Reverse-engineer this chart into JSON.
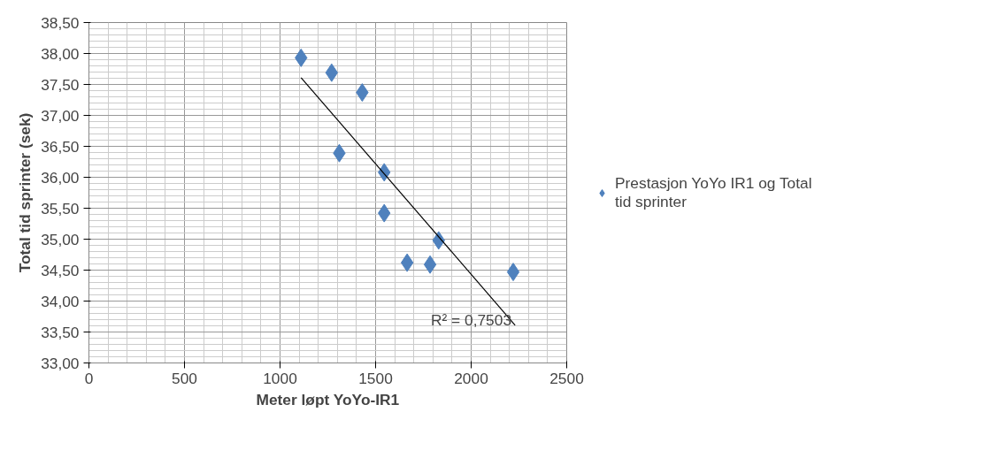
{
  "chart_data": {
    "type": "scatter",
    "xlabel": "Meter løpt YoYo-IR1",
    "ylabel": "Total tid sprinter (sek)",
    "xlim": [
      0,
      2500
    ],
    "xticks": [
      0,
      500,
      1000,
      1500,
      2000,
      2500
    ],
    "ylim": [
      33,
      38.5
    ],
    "yticks": [
      {
        "value": 33,
        "label": "33,00"
      },
      {
        "value": 33.5,
        "label": "33,50"
      },
      {
        "value": 34,
        "label": "34,00"
      },
      {
        "value": 34.5,
        "label": "34,50"
      },
      {
        "value": 35,
        "label": "35,00"
      },
      {
        "value": 35.5,
        "label": "35,50"
      },
      {
        "value": 36,
        "label": "36,00"
      },
      {
        "value": 36.5,
        "label": "36,50"
      },
      {
        "value": 37,
        "label": "37,00"
      },
      {
        "value": 37.5,
        "label": "37,50"
      },
      {
        "value": 38,
        "label": "38,00"
      },
      {
        "value": 38.5,
        "label": "38,50"
      }
    ],
    "grid": true,
    "legend": "right",
    "series": [
      {
        "name": "Prestasjon YoYo IR1 og Total tid sprinter",
        "color": "#4f81bd",
        "marker": "diamond",
        "x": [
          1110,
          1270,
          1430,
          1310,
          1545,
          1545,
          1830,
          1665,
          1785,
          2220
        ],
        "values": [
          37.93,
          37.69,
          37.37,
          36.39,
          36.08,
          35.42,
          34.98,
          34.62,
          34.59,
          34.47
        ]
      },
      {
        "type": "line",
        "color": "#000000",
        "line_style": "solid",
        "x": [
          1110,
          2230
        ],
        "values": [
          37.61,
          33.61
        ]
      }
    ],
    "annotations": [
      "R² = 0,7503"
    ]
  }
}
